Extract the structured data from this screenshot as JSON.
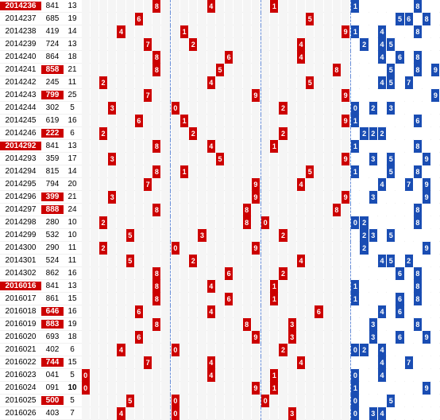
{
  "columns": {
    "period_width": 52,
    "sum_width": 28,
    "span_width": 22,
    "zone1_cols": 10,
    "zone2_cols": 10,
    "zone3_cols": 10,
    "right_cols": 10
  },
  "colors": {
    "red": "#c00",
    "blue": "#1a4db3",
    "gray": "#f5f5f5",
    "white": "#fff",
    "sep": "#6a8fd8"
  },
  "rows": [
    {
      "p": "2014236",
      "ph": true,
      "s": "841",
      "sh": false,
      "sp": "13",
      "r": {
        "z1": [
          8
        ],
        "z2": [
          4
        ],
        "z3": [
          1
        ]
      },
      "b": {
        "r": [
          0,
          7
        ]
      },
      "bt": {
        "0": "1",
        "7": "8"
      }
    },
    {
      "p": "2014237",
      "ph": false,
      "s": "685",
      "sh": false,
      "sp": "19",
      "r": {
        "z1": [
          6
        ],
        "z2": [],
        "z3": [
          5
        ]
      },
      "b": {
        "r": [
          5,
          6,
          8
        ]
      },
      "bt": {
        "5": "5",
        "6": "6",
        "8": "8"
      }
    },
    {
      "p": "2014238",
      "ph": false,
      "s": "419",
      "sh": false,
      "sp": "14",
      "r": {
        "z1": [
          4
        ],
        "z2": [
          1
        ],
        "z3": [
          9
        ]
      },
      "b": {
        "r": [
          0,
          3,
          7
        ]
      },
      "bt": {
        "0": "1",
        "3": "4",
        "7": "8"
      }
    },
    {
      "p": "2014239",
      "ph": false,
      "s": "724",
      "sh": false,
      "sp": "13",
      "r": {
        "z1": [
          7
        ],
        "z2": [
          2
        ],
        "z3": [
          4
        ]
      },
      "b": {
        "r": [
          1,
          3,
          4
        ]
      },
      "bt": {
        "1": "2",
        "3": "4",
        "4": "5"
      }
    },
    {
      "p": "2014240",
      "ph": false,
      "s": "864",
      "sh": false,
      "sp": "18",
      "r": {
        "z1": [
          8
        ],
        "z2": [
          6
        ],
        "z3": [
          4
        ]
      },
      "b": {
        "r": [
          3,
          5,
          7
        ]
      },
      "bt": {
        "3": "4",
        "5": "6",
        "7": "8"
      }
    },
    {
      "p": "2014241",
      "ph": false,
      "s": "858",
      "sh": true,
      "sp": "21",
      "r": {
        "z1": [
          8
        ],
        "z2": [
          5
        ],
        "z3": [
          8
        ]
      },
      "b": {
        "r": [
          4,
          7,
          9
        ]
      },
      "bt": {
        "4": "5",
        "7": "8",
        "9": "9"
      }
    },
    {
      "p": "2014242",
      "ph": false,
      "s": "245",
      "sh": false,
      "sp": "11",
      "r": {
        "z1": [
          2
        ],
        "z2": [
          4
        ],
        "z3": [
          5
        ]
      },
      "b": {
        "r": [
          3,
          4,
          6
        ]
      },
      "bt": {
        "3": "4",
        "4": "5",
        "6": "7"
      }
    },
    {
      "p": "2014243",
      "ph": false,
      "s": "799",
      "sh": true,
      "sp": "25",
      "r": {
        "z1": [
          7
        ],
        "z2": [
          9
        ],
        "z3": [
          9
        ]
      },
      "b": {
        "r": [
          9
        ]
      },
      "bt": {
        "9": "9"
      }
    },
    {
      "p": "2014244",
      "ph": false,
      "s": "302",
      "sh": false,
      "sp": "5",
      "r": {
        "z1": [
          3
        ],
        "z2": [
          0
        ],
        "z3": [
          2
        ]
      },
      "b": {
        "r": [
          0,
          2,
          4
        ]
      },
      "bt": {
        "0": "0",
        "2": "2",
        "4": "3"
      }
    },
    {
      "p": "2014245",
      "ph": false,
      "s": "619",
      "sh": false,
      "sp": "16",
      "r": {
        "z1": [
          6
        ],
        "z2": [
          1
        ],
        "z3": [
          9
        ]
      },
      "b": {
        "r": [
          0,
          7
        ]
      },
      "bt": {
        "0": "1",
        "7": "6"
      }
    },
    {
      "p": "2014246",
      "ph": false,
      "s": "222",
      "sh": true,
      "sp": "6",
      "r": {
        "z1": [
          2
        ],
        "z2": [
          2
        ],
        "z3": [
          2
        ]
      },
      "b": {
        "r": [
          1,
          2,
          3
        ]
      },
      "bt": {
        "1": "2",
        "2": "2",
        "3": "2"
      }
    },
    {
      "p": "2014292",
      "ph": true,
      "s": "841",
      "sh": false,
      "sp": "13",
      "r": {
        "z1": [
          8
        ],
        "z2": [
          4
        ],
        "z3": [
          1
        ]
      },
      "b": {
        "r": [
          0,
          7
        ]
      },
      "bt": {
        "0": "1",
        "7": "8"
      }
    },
    {
      "p": "2014293",
      "ph": false,
      "s": "359",
      "sh": false,
      "sp": "17",
      "r": {
        "z1": [
          3
        ],
        "z2": [
          5
        ],
        "z3": [
          9
        ]
      },
      "b": {
        "r": [
          2,
          4,
          8
        ]
      },
      "bt": {
        "2": "3",
        "4": "5",
        "8": "9"
      }
    },
    {
      "p": "2014294",
      "ph": false,
      "s": "815",
      "sh": false,
      "sp": "14",
      "r": {
        "z1": [
          8
        ],
        "z2": [
          1
        ],
        "z3": [
          5
        ]
      },
      "b": {
        "r": [
          0,
          4,
          7
        ]
      },
      "bt": {
        "0": "1",
        "4": "5",
        "7": "8"
      }
    },
    {
      "p": "2014295",
      "ph": false,
      "s": "794",
      "sh": false,
      "sp": "20",
      "r": {
        "z1": [
          7
        ],
        "z2": [
          9
        ],
        "z3": [
          4
        ]
      },
      "b": {
        "r": [
          3,
          6,
          8
        ]
      },
      "bt": {
        "3": "4",
        "6": "7",
        "8": "9"
      }
    },
    {
      "p": "2014296",
      "ph": false,
      "s": "399",
      "sh": true,
      "sp": "21",
      "r": {
        "z1": [
          3
        ],
        "z2": [
          9
        ],
        "z3": [
          9
        ]
      },
      "b": {
        "r": [
          2,
          8
        ]
      },
      "bt": {
        "2": "3",
        "8": "9"
      }
    },
    {
      "p": "2014297",
      "ph": false,
      "s": "888",
      "sh": true,
      "sp": "24",
      "r": {
        "z1": [
          8
        ],
        "z2": [
          8
        ],
        "z3": [
          8
        ]
      },
      "b": {
        "r": [
          7
        ]
      },
      "bt": {
        "7": "8"
      }
    },
    {
      "p": "2014298",
      "ph": false,
      "s": "280",
      "sh": false,
      "sp": "10",
      "r": {
        "z1": [
          2
        ],
        "z2": [
          8
        ],
        "z3": [
          0
        ]
      },
      "b": {
        "r": [
          0,
          1,
          7
        ]
      },
      "bt": {
        "0": "0",
        "1": "2",
        "7": "8"
      }
    },
    {
      "p": "2014299",
      "ph": false,
      "s": "532",
      "sh": false,
      "sp": "10",
      "r": {
        "z1": [
          5
        ],
        "z2": [
          3
        ],
        "z3": [
          2
        ]
      },
      "b": {
        "r": [
          1,
          2,
          4
        ]
      },
      "bt": {
        "1": "2",
        "2": "3",
        "4": "5"
      }
    },
    {
      "p": "2014300",
      "ph": false,
      "s": "290",
      "sh": false,
      "sp": "11",
      "r": {
        "z1": [
          2
        ],
        "z2": [
          9,
          0
        ],
        "z3": []
      },
      "b": {
        "r": [
          1,
          8
        ]
      },
      "bt": {
        "1": "2",
        "8": "9"
      }
    },
    {
      "p": "2014301",
      "ph": false,
      "s": "524",
      "sh": false,
      "sp": "11",
      "r": {
        "z1": [
          5
        ],
        "z2": [
          2
        ],
        "z3": [
          4
        ]
      },
      "b": {
        "r": [
          3,
          4,
          6
        ]
      },
      "bt": {
        "3": "4",
        "4": "5",
        "6": "2"
      }
    },
    {
      "p": "2014302",
      "ph": false,
      "s": "862",
      "sh": false,
      "sp": "16",
      "r": {
        "z1": [
          8
        ],
        "z2": [
          6
        ],
        "z3": [
          2
        ]
      },
      "b": {
        "r": [
          5,
          7
        ]
      },
      "bt": {
        "5": "6",
        "7": "8"
      }
    },
    {
      "p": "2016016",
      "ph": true,
      "s": "841",
      "sh": false,
      "sp": "13",
      "r": {
        "z1": [
          8
        ],
        "z2": [
          4
        ],
        "z3": [
          1
        ]
      },
      "b": {
        "r": [
          0,
          7
        ]
      },
      "bt": {
        "0": "1",
        "7": "8"
      }
    },
    {
      "p": "2016017",
      "ph": false,
      "s": "861",
      "sh": false,
      "sp": "15",
      "r": {
        "z1": [
          8
        ],
        "z2": [
          6
        ],
        "z3": [
          1
        ]
      },
      "b": {
        "r": [
          0,
          5,
          7
        ]
      },
      "bt": {
        "0": "1",
        "5": "6",
        "7": "8"
      }
    },
    {
      "p": "2016018",
      "ph": false,
      "s": "646",
      "sh": true,
      "sp": "16",
      "r": {
        "z1": [
          6
        ],
        "z2": [
          4
        ],
        "z3": [
          6
        ]
      },
      "b": {
        "r": [
          3,
          5
        ]
      },
      "bt": {
        "3": "4",
        "5": "6"
      }
    },
    {
      "p": "2016019",
      "ph": false,
      "s": "883",
      "sh": true,
      "sp": "19",
      "r": {
        "z1": [
          8
        ],
        "z2": [
          8
        ],
        "z3": [
          3
        ]
      },
      "b": {
        "r": [
          2,
          7
        ]
      },
      "bt": {
        "2": "3",
        "7": "8"
      }
    },
    {
      "p": "2016020",
      "ph": false,
      "s": "693",
      "sh": false,
      "sp": "18",
      "r": {
        "z1": [
          6
        ],
        "z2": [
          9
        ],
        "z3": [
          3
        ]
      },
      "b": {
        "r": [
          2,
          5,
          8
        ]
      },
      "bt": {
        "2": "3",
        "5": "6",
        "8": "9"
      }
    },
    {
      "p": "2016021",
      "ph": false,
      "s": "402",
      "sh": false,
      "sp": "6",
      "r": {
        "z1": [
          4
        ],
        "z2": [
          0
        ],
        "z3": [
          2
        ]
      },
      "b": {
        "r": [
          0,
          1,
          3
        ]
      },
      "bt": {
        "0": "0",
        "1": "2",
        "3": "4"
      }
    },
    {
      "p": "2016022",
      "ph": false,
      "s": "744",
      "sh": true,
      "sp": "15",
      "r": {
        "z1": [
          7
        ],
        "z2": [
          4
        ],
        "z3": [
          4
        ]
      },
      "b": {
        "r": [
          3,
          6
        ]
      },
      "bt": {
        "3": "4",
        "6": "7"
      }
    },
    {
      "p": "2016023",
      "ph": false,
      "s": "041",
      "sh": false,
      "sp": "5",
      "r": {
        "z1": [
          0
        ],
        "z2": [
          4
        ],
        "z3": [
          1
        ]
      },
      "b": {
        "r": [
          0,
          3
        ]
      },
      "bt": {
        "0": "0",
        "3": "4"
      },
      "bextra": [
        {
          "i": 0,
          "t": "1"
        }
      ]
    },
    {
      "p": "2016024",
      "ph": false,
      "s": "091",
      "sh": false,
      "sp": "10",
      "spb": true,
      "r": {
        "z1": [
          0
        ],
        "z2": [
          9
        ],
        "z3": [
          1
        ]
      },
      "b": {
        "r": [
          0,
          8
        ]
      },
      "bt": {
        "0": "1",
        "8": "9"
      },
      "bextra": [
        {
          "i": 0,
          "t": "0"
        }
      ]
    },
    {
      "p": "2016025",
      "ph": false,
      "s": "500",
      "sh": true,
      "sp": "5",
      "r": {
        "z1": [
          5
        ],
        "z2": [
          0
        ],
        "z3": [
          0
        ]
      },
      "b": {
        "r": [
          0,
          4
        ]
      },
      "bt": {
        "0": "0",
        "4": "5"
      }
    },
    {
      "p": "2016026",
      "ph": false,
      "s": "403",
      "sh": false,
      "sp": "7",
      "r": {
        "z1": [
          4
        ],
        "z2": [
          0
        ],
        "z3": [
          3
        ]
      },
      "b": {
        "r": [
          0,
          2,
          3
        ]
      },
      "bt": {
        "0": "0",
        "2": "3",
        "3": "4"
      }
    }
  ]
}
